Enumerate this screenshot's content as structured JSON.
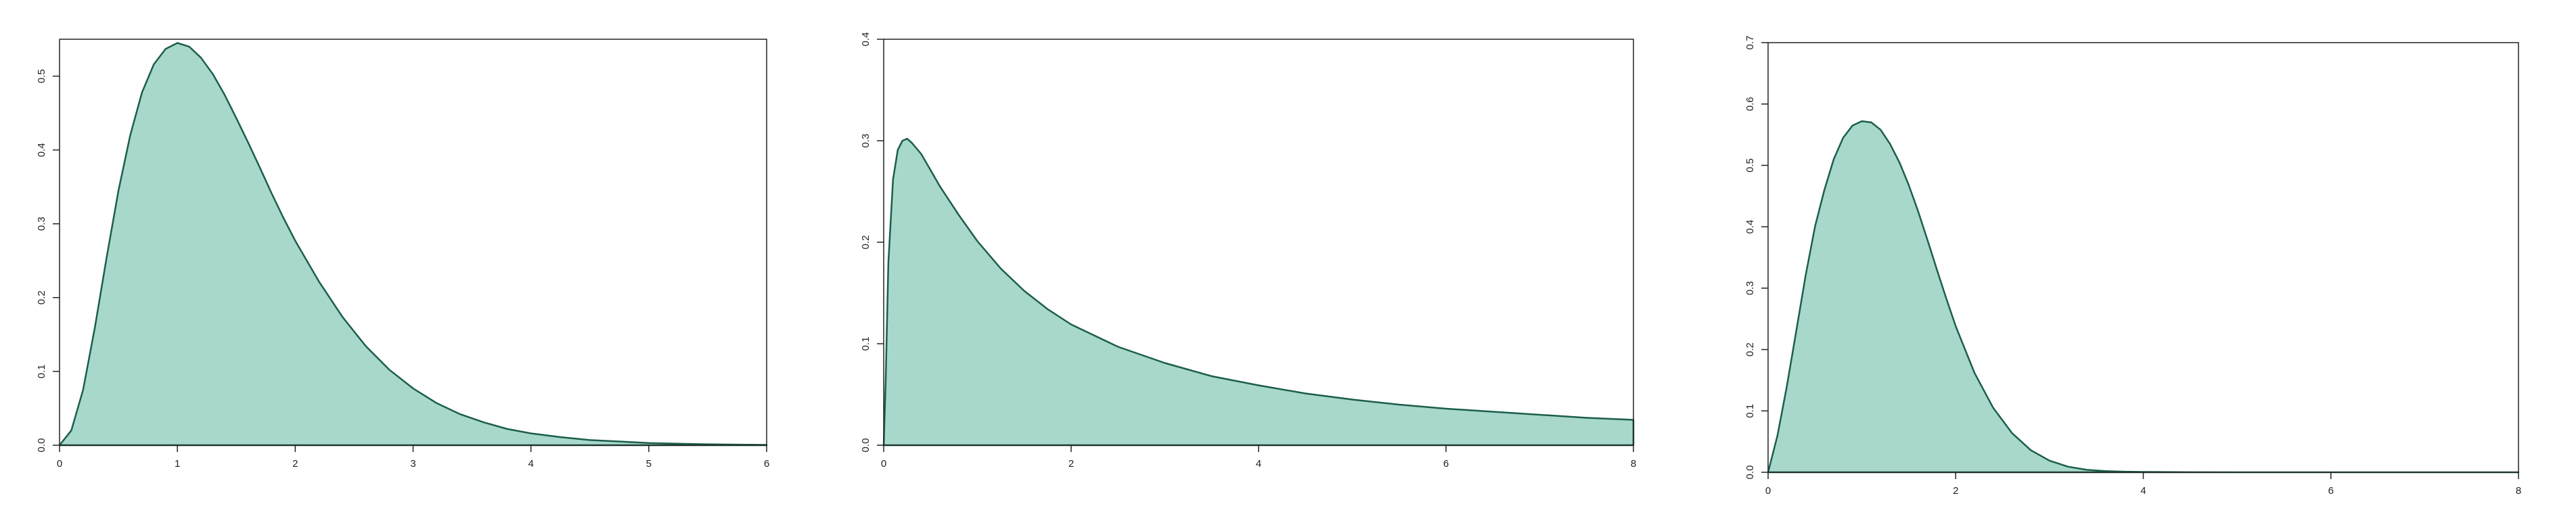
{
  "colors": {
    "fill": "#a8d8cb",
    "line": "#1b5e4b",
    "axis": "#222222",
    "background": "#ffffff"
  },
  "chart_data": [
    {
      "type": "area",
      "title": "",
      "xlabel": "",
      "ylabel": "",
      "xlim": [
        0,
        6
      ],
      "ylim": [
        0,
        0.55
      ],
      "xticks": [
        "0",
        "1",
        "2",
        "3",
        "4",
        "5",
        "6"
      ],
      "yticks": [
        "0.0",
        "0.1",
        "0.2",
        "0.3",
        "0.4",
        "0.5"
      ],
      "grid": false,
      "legend": "none",
      "x": [
        0,
        0.1,
        0.2,
        0.3,
        0.4,
        0.5,
        0.6,
        0.7,
        0.8,
        0.9,
        1.0,
        1.1,
        1.2,
        1.3,
        1.4,
        1.5,
        1.6,
        1.7,
        1.8,
        1.9,
        2.0,
        2.2,
        2.4,
        2.6,
        2.8,
        3.0,
        3.2,
        3.4,
        3.6,
        3.8,
        4.0,
        4.25,
        4.5,
        4.75,
        5.0,
        5.25,
        5.5,
        5.75,
        6.0
      ],
      "y": [
        0,
        0.02,
        0.075,
        0.16,
        0.255,
        0.345,
        0.42,
        0.478,
        0.516,
        0.537,
        0.545,
        0.54,
        0.525,
        0.503,
        0.475,
        0.443,
        0.41,
        0.376,
        0.341,
        0.308,
        0.277,
        0.222,
        0.174,
        0.134,
        0.102,
        0.077,
        0.057,
        0.042,
        0.031,
        0.022,
        0.016,
        0.011,
        0.007,
        0.005,
        0.003,
        0.002,
        0.0013,
        0.0008,
        0.0005
      ]
    },
    {
      "type": "area",
      "title": "",
      "xlabel": "",
      "ylabel": "",
      "xlim": [
        0,
        8
      ],
      "ylim": [
        0,
        0.4
      ],
      "xticks": [
        "0",
        "2",
        "4",
        "6",
        "8"
      ],
      "yticks": [
        "0.0",
        "0.1",
        "0.2",
        "0.3",
        "0.4"
      ],
      "grid": false,
      "legend": "none",
      "x": [
        0,
        0.02,
        0.05,
        0.1,
        0.15,
        0.2,
        0.25,
        0.3,
        0.4,
        0.5,
        0.6,
        0.8,
        1.0,
        1.25,
        1.5,
        1.75,
        2.0,
        2.5,
        3.0,
        3.5,
        4.0,
        4.5,
        5.0,
        5.5,
        6.0,
        6.5,
        7.0,
        7.5,
        8.0
      ],
      "y": [
        0,
        0.06,
        0.18,
        0.262,
        0.291,
        0.3,
        0.302,
        0.298,
        0.287,
        0.271,
        0.255,
        0.227,
        0.201,
        0.174,
        0.152,
        0.134,
        0.119,
        0.097,
        0.081,
        0.068,
        0.059,
        0.051,
        0.045,
        0.04,
        0.036,
        0.033,
        0.03,
        0.027,
        0.025
      ]
    },
    {
      "type": "area",
      "title": "",
      "xlabel": "",
      "ylabel": "",
      "xlim": [
        0,
        8
      ],
      "ylim": [
        0,
        0.7
      ],
      "xticks": [
        "0",
        "2",
        "4",
        "6",
        "8"
      ],
      "yticks": [
        "0.0",
        "0.1",
        "0.2",
        "0.3",
        "0.4",
        "0.5",
        "0.6",
        "0.7"
      ],
      "grid": false,
      "legend": "none",
      "x": [
        0,
        0.1,
        0.2,
        0.3,
        0.4,
        0.5,
        0.6,
        0.7,
        0.8,
        0.9,
        1.0,
        1.1,
        1.2,
        1.3,
        1.4,
        1.5,
        1.6,
        1.7,
        1.8,
        1.9,
        2.0,
        2.2,
        2.4,
        2.6,
        2.8,
        3.0,
        3.2,
        3.4,
        3.6,
        3.8,
        4.0,
        4.5,
        5.0,
        6.0,
        7.0,
        8.0
      ],
      "y": [
        0,
        0.06,
        0.14,
        0.23,
        0.32,
        0.4,
        0.46,
        0.51,
        0.545,
        0.565,
        0.572,
        0.57,
        0.558,
        0.535,
        0.505,
        0.468,
        0.425,
        0.378,
        0.33,
        0.283,
        0.238,
        0.162,
        0.105,
        0.064,
        0.036,
        0.019,
        0.009,
        0.004,
        0.002,
        0.001,
        0.0005,
        0.0001,
        0,
        0,
        0,
        0
      ]
    }
  ]
}
